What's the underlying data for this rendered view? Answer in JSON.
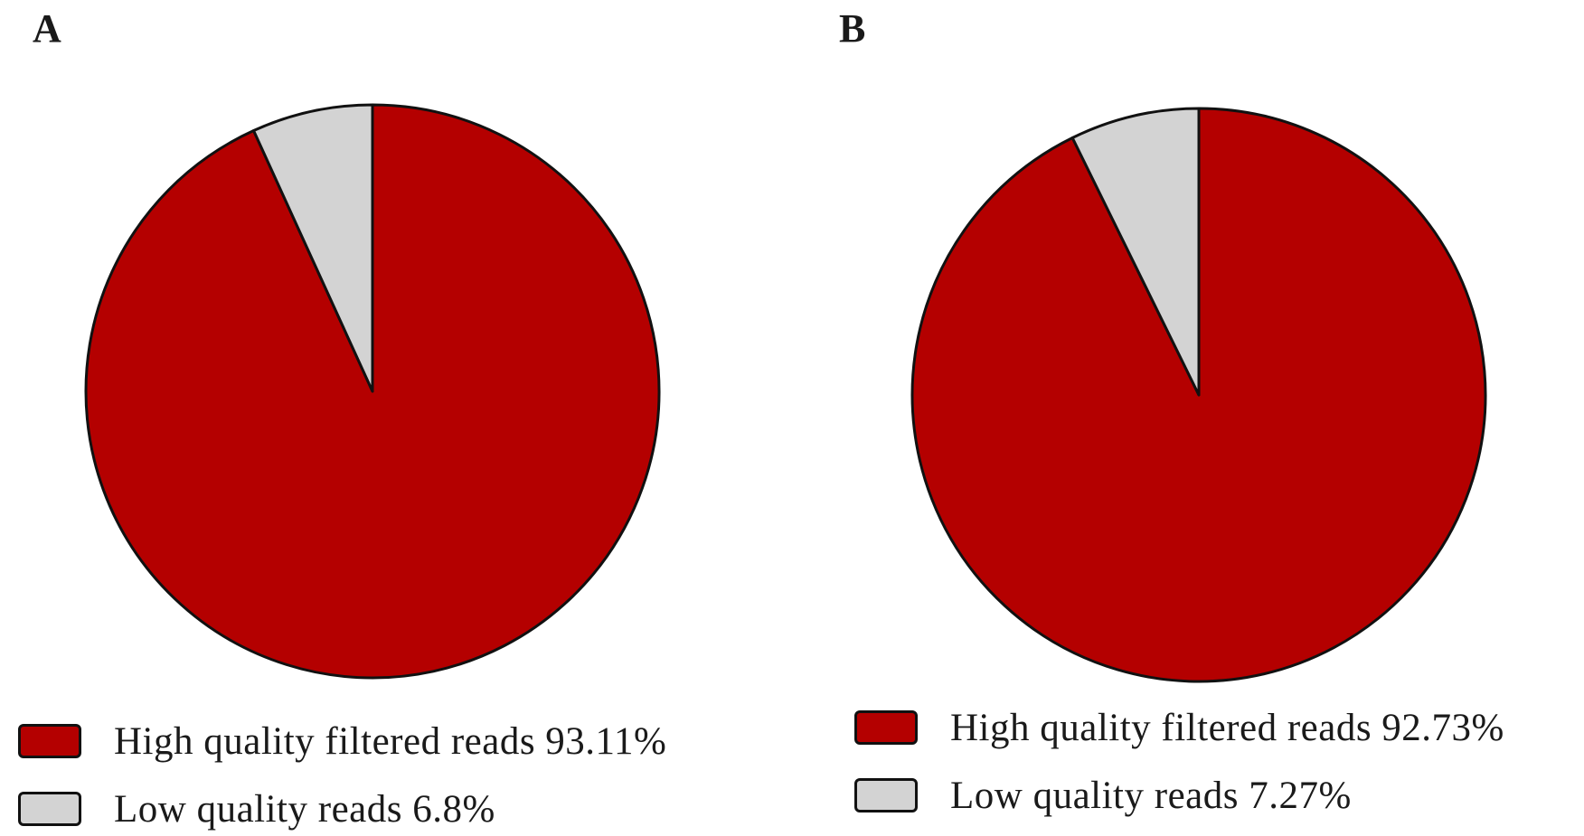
{
  "chart_data": [
    {
      "type": "pie",
      "panel_label": "A",
      "title": "",
      "slices": [
        {
          "label": "High quality filtered reads 93.11%",
          "value": 93.11,
          "color": "#b40000"
        },
        {
          "label": "Low quality reads 6.8%",
          "value": 6.8,
          "color": "#d3d3d3"
        }
      ],
      "legend_position": "bottom-left"
    },
    {
      "type": "pie",
      "panel_label": "B",
      "title": "",
      "slices": [
        {
          "label": "High quality filtered reads 92.73%",
          "value": 92.73,
          "color": "#b40000"
        },
        {
          "label": "Low quality reads 7.27%",
          "value": 7.27,
          "color": "#d3d3d3"
        }
      ],
      "legend_position": "bottom-left"
    }
  ]
}
